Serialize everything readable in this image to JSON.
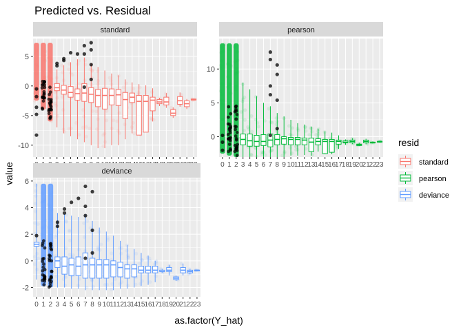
{
  "chart_data": {
    "type": "boxplot",
    "title": "Predicted vs. Residual",
    "xlabel": "as.factor(Y_hat)",
    "ylabel": "value",
    "categories": [
      "0",
      "1",
      "2",
      "3",
      "4",
      "5",
      "6",
      "7",
      "8",
      "9",
      "10",
      "11",
      "12",
      "13",
      "14",
      "15",
      "16",
      "17",
      "18",
      "19",
      "20",
      "21",
      "22",
      "23"
    ],
    "legend": {
      "title": "resid",
      "position": "right",
      "entries": [
        {
          "name": "standard",
          "color": "#F8766D"
        },
        {
          "name": "pearson",
          "color": "#00BA38"
        },
        {
          "name": "deviance",
          "color": "#619CFF"
        }
      ]
    },
    "colors": {
      "standard": "#F8766D",
      "pearson": "#00BA38",
      "deviance": "#619CFF",
      "panel_bg": "#EBEBEB",
      "strip_bg": "#D9D9D9",
      "grid": "#FFFFFF"
    },
    "panels": [
      {
        "name": "standard",
        "color": "#F8766D",
        "ylim": [
          -12,
          8
        ],
        "yticks": [
          -10,
          -5,
          0,
          5
        ],
        "ytick_labels": [
          "-10",
          "-5",
          "0",
          "5"
        ],
        "boxes": [
          {
            "q1": null,
            "median": null,
            "q3": null,
            "lo": -2.5,
            "hi": 7.3
          },
          {
            "q1": null,
            "median": null,
            "q3": null,
            "lo": -4,
            "hi": 7.3
          },
          {
            "q1": null,
            "median": null,
            "q3": null,
            "lo": -6,
            "hi": 7.3
          },
          {
            "q1": -0.8,
            "median": -0.3,
            "q3": 0.4,
            "lo": -7,
            "hi": 2.8
          },
          {
            "q1": -1.4,
            "median": -0.7,
            "q3": 0.1,
            "lo": -8,
            "hi": 3.5
          },
          {
            "q1": -1.9,
            "median": -1.1,
            "q3": -0.1,
            "lo": -8.5,
            "hi": 4
          },
          {
            "q1": -2.4,
            "median": -1.3,
            "q3": -0.5,
            "lo": -9,
            "hi": 4.5
          },
          {
            "q1": -2.6,
            "median": -1.2,
            "q3": 0.4,
            "lo": -9.5,
            "hi": 4.8
          },
          {
            "q1": -2.8,
            "median": -1.4,
            "q3": -0.3,
            "lo": -10,
            "hi": 3.8
          },
          {
            "q1": -3.5,
            "median": -1.6,
            "q3": -0.6,
            "lo": -10.5,
            "hi": 3.2
          },
          {
            "q1": -3.9,
            "median": -1.6,
            "q3": -0.4,
            "lo": -10.5,
            "hi": 2.6
          },
          {
            "q1": -3.2,
            "median": -1.6,
            "q3": -0.5,
            "lo": -10,
            "hi": 2.1
          },
          {
            "q1": -3.3,
            "median": -1.5,
            "q3": -0.6,
            "lo": -10,
            "hi": 1.8
          },
          {
            "q1": -5.5,
            "median": -2.3,
            "q3": -1.1,
            "lo": -9,
            "hi": 1.1
          },
          {
            "q1": -2.8,
            "median": -1.9,
            "q3": -1.2,
            "lo": -8,
            "hi": 0.6
          },
          {
            "q1": -8.3,
            "median": -2.6,
            "q3": -1.6,
            "lo": -8.3,
            "hi": 0.3
          },
          {
            "q1": -7.8,
            "median": -2.6,
            "q3": -1.6,
            "lo": -7.8,
            "hi": 0.1
          },
          {
            "q1": -4.2,
            "median": -2.4,
            "q3": -1.9,
            "lo": -6,
            "hi": -0.4
          },
          {
            "q1": -3,
            "median": -2.7,
            "q3": -2.3,
            "lo": -3.4,
            "hi": -2
          },
          {
            "q1": -3.2,
            "median": -2.7,
            "q3": -1.9,
            "lo": -3.7,
            "hi": -1.2
          },
          {
            "q1": -5,
            "median": -4.6,
            "q3": -4,
            "lo": -5.4,
            "hi": -3.6
          },
          {
            "q1": -3.1,
            "median": -2.5,
            "q3": -1.8,
            "lo": -3.5,
            "hi": -1.1
          },
          {
            "q1": -3.5,
            "median": -3,
            "q3": -2.5,
            "lo": -3.9,
            "hi": -2.2
          },
          {
            "q1": -2.4,
            "median": -2.3,
            "q3": -2.2,
            "lo": -2.4,
            "hi": -2.2
          }
        ],
        "outliers_dark": [
          {
            "x": "0",
            "y": -8.3
          },
          {
            "x": "0",
            "y": -4.8
          },
          {
            "x": "0",
            "y": -3.6
          },
          {
            "x": "0",
            "y": -1.8
          },
          {
            "x": "0",
            "y": -0.5
          },
          {
            "x": "3",
            "y": 3.4
          },
          {
            "x": "3",
            "y": 3.8
          },
          {
            "x": "4",
            "y": 4.6
          },
          {
            "x": "4",
            "y": 4.3
          },
          {
            "x": "5",
            "y": 5.6
          },
          {
            "x": "6",
            "y": 5.4
          },
          {
            "x": "7",
            "y": 6.8
          },
          {
            "x": "7",
            "y": 5.4
          },
          {
            "x": "7",
            "y": -0.2
          },
          {
            "x": "8",
            "y": 7.3
          },
          {
            "x": "8",
            "y": 6.1
          },
          {
            "x": "8",
            "y": 3.6
          },
          {
            "x": "8",
            "y": 1.1
          }
        ]
      },
      {
        "name": "pearson",
        "color": "#00BA38",
        "ylim": [
          -3,
          14.5
        ],
        "yticks": [
          0,
          5,
          10
        ],
        "ytick_labels": [
          "0",
          "5",
          "10"
        ],
        "boxes": [
          {
            "q1": null,
            "median": null,
            "q3": null,
            "lo": -2.5,
            "hi": 13.8
          },
          {
            "q1": null,
            "median": null,
            "q3": null,
            "lo": -2.8,
            "hi": 13.8
          },
          {
            "q1": null,
            "median": null,
            "q3": null,
            "lo": -3,
            "hi": 13.8
          },
          {
            "q1": -1.2,
            "median": -0.4,
            "q3": 0.4,
            "lo": -3,
            "hi": 8
          },
          {
            "q1": -1.4,
            "median": -0.6,
            "q3": 0.4,
            "lo": -3,
            "hi": 7
          },
          {
            "q1": -1.4,
            "median": -0.7,
            "q3": 0.2,
            "lo": -3,
            "hi": 6
          },
          {
            "q1": -1.3,
            "median": -0.7,
            "q3": 0.3,
            "lo": -3,
            "hi": 5
          },
          {
            "q1": -1.5,
            "median": -0.5,
            "q3": 0.4,
            "lo": -3,
            "hi": 4.5
          },
          {
            "q1": -1.2,
            "median": -0.4,
            "q3": 0.3,
            "lo": -3,
            "hi": 3.5
          },
          {
            "q1": -1.1,
            "median": -0.3,
            "q3": 0,
            "lo": -3,
            "hi": 3
          },
          {
            "q1": -1.2,
            "median": -0.4,
            "q3": -0.1,
            "lo": -2.8,
            "hi": 2.5
          },
          {
            "q1": -1.2,
            "median": -0.4,
            "q3": -0.1,
            "lo": -2.8,
            "hi": 2
          },
          {
            "q1": -1.2,
            "median": -0.5,
            "q3": -0.2,
            "lo": -2.7,
            "hi": 1.8
          },
          {
            "q1": -2.2,
            "median": -0.8,
            "q3": -0.2,
            "lo": -2.8,
            "hi": 1.5
          },
          {
            "q1": -1.2,
            "median": -0.7,
            "q3": -0.3,
            "lo": -2.2,
            "hi": 1.2
          },
          {
            "q1": -2.5,
            "median": -0.7,
            "q3": -0.4,
            "lo": -2.6,
            "hi": 0.8
          },
          {
            "q1": -2.3,
            "median": -0.7,
            "q3": -0.4,
            "lo": -2.6,
            "hi": 0.6
          },
          {
            "q1": -1.1,
            "median": -0.7,
            "q3": -0.5,
            "lo": -1.8,
            "hi": 0.2
          },
          {
            "q1": -0.9,
            "median": -0.8,
            "q3": -0.6,
            "lo": -1.2,
            "hi": -0.4
          },
          {
            "q1": -0.9,
            "median": -0.7,
            "q3": -0.5,
            "lo": -1.1,
            "hi": -0.2
          },
          {
            "q1": -1.3,
            "median": -1.2,
            "q3": -1.1,
            "lo": -1.4,
            "hi": -0.9
          },
          {
            "q1": -0.9,
            "median": -0.7,
            "q3": -0.5,
            "lo": -1.1,
            "hi": -0.3
          },
          {
            "q1": -0.9,
            "median": -0.9,
            "q3": -0.8,
            "lo": -1,
            "hi": -0.7
          },
          {
            "q1": -0.7,
            "median": -0.7,
            "q3": -0.7,
            "lo": -0.7,
            "hi": -0.7
          }
        ],
        "outliers_dark": [
          {
            "x": "0",
            "y": -2
          },
          {
            "x": "0",
            "y": -0.8
          },
          {
            "x": "0",
            "y": 0.2
          },
          {
            "x": "2",
            "y": 4.5
          },
          {
            "x": "2",
            "y": 3.8
          },
          {
            "x": "2",
            "y": 2.6
          },
          {
            "x": "7",
            "y": 12.5
          },
          {
            "x": "7",
            "y": 11.4
          },
          {
            "x": "7",
            "y": 7.5
          },
          {
            "x": "7",
            "y": 6.2
          },
          {
            "x": "7",
            "y": 0.2
          },
          {
            "x": "8",
            "y": 10.6
          },
          {
            "x": "8",
            "y": 9.2
          },
          {
            "x": "8",
            "y": 5.4
          },
          {
            "x": "8",
            "y": 1.2
          }
        ]
      },
      {
        "name": "deviance",
        "color": "#619CFF",
        "ylim": [
          -2.7,
          6.2
        ],
        "yticks": [
          -2,
          0,
          2,
          4,
          6
        ],
        "ytick_labels": [
          "-2",
          "0",
          "2",
          "4",
          "6"
        ],
        "boxes": [
          {
            "q1": 1.1,
            "median": 1.25,
            "q3": 1.4,
            "lo": -1.4,
            "hi": 5.8
          },
          {
            "q1": null,
            "median": null,
            "q3": null,
            "lo": -1.9,
            "hi": 5.8
          },
          {
            "q1": null,
            "median": null,
            "q3": null,
            "lo": -2,
            "hi": 5.8
          },
          {
            "q1": -0.5,
            "median": 0,
            "q3": 0.3,
            "lo": -2,
            "hi": 3.6
          },
          {
            "q1": -1,
            "median": -0.4,
            "q3": 0.3,
            "lo": -2,
            "hi": 3.5
          },
          {
            "q1": -1.1,
            "median": -0.3,
            "q3": 0.2,
            "lo": -2.1,
            "hi": 3.4
          },
          {
            "q1": -1.1,
            "median": -0.4,
            "q3": 0.3,
            "lo": -2.1,
            "hi": 3.3
          },
          {
            "q1": -1.3,
            "median": -0.3,
            "q3": 0.6,
            "lo": -2.2,
            "hi": 3.5
          },
          {
            "q1": -1.3,
            "median": -0.3,
            "q3": 0.2,
            "lo": -2.2,
            "hi": 3
          },
          {
            "q1": -1.3,
            "median": -0.3,
            "q3": 0.1,
            "lo": -2.2,
            "hi": 2.5
          },
          {
            "q1": -1.3,
            "median": -0.3,
            "q3": 0.1,
            "lo": -2.2,
            "hi": 2.2
          },
          {
            "q1": -1.2,
            "median": -0.3,
            "q3": 0,
            "lo": -2.2,
            "hi": 1.9
          },
          {
            "q1": -1.2,
            "median": -0.5,
            "q3": -0.1,
            "lo": -2.1,
            "hi": 1.5
          },
          {
            "q1": -1.3,
            "median": -0.6,
            "q3": -0.3,
            "lo": -2.1,
            "hi": 1.2
          },
          {
            "q1": -1.2,
            "median": -0.6,
            "q3": -0.3,
            "lo": -2,
            "hi": 0.9
          },
          {
            "q1": -0.9,
            "median": -0.7,
            "q3": -0.4,
            "lo": -1.9,
            "hi": 0.6
          },
          {
            "q1": -0.9,
            "median": -0.7,
            "q3": -0.4,
            "lo": -1.8,
            "hi": 0.4
          },
          {
            "q1": -0.9,
            "median": -0.7,
            "q3": -0.4,
            "lo": -1.6,
            "hi": 0
          },
          {
            "q1": -0.8,
            "median": -0.8,
            "q3": -0.7,
            "lo": -0.9,
            "hi": -0.6
          },
          {
            "q1": -0.8,
            "median": -0.7,
            "q3": -0.5,
            "lo": -1.1,
            "hi": -0.3
          },
          {
            "q1": -1.4,
            "median": -1.3,
            "q3": -1.2,
            "lo": -1.5,
            "hi": -1.1
          },
          {
            "q1": -0.9,
            "median": -0.7,
            "q3": -0.5,
            "lo": -1.1,
            "hi": -0.2
          },
          {
            "q1": -0.9,
            "median": -0.8,
            "q3": -0.7,
            "lo": -1,
            "hi": -0.6
          },
          {
            "q1": -0.7,
            "median": -0.7,
            "q3": -0.7,
            "lo": -0.7,
            "hi": -0.7
          }
        ],
        "outliers_dark": [
          {
            "x": "0",
            "y": 1.9
          },
          {
            "x": "3",
            "y": 2.6
          },
          {
            "x": "3",
            "y": 2.9
          },
          {
            "x": "4",
            "y": 3.6
          },
          {
            "x": "4",
            "y": 3.9
          },
          {
            "x": "5",
            "y": 4.4
          },
          {
            "x": "6",
            "y": 4.7
          },
          {
            "x": "7",
            "y": 5.6
          },
          {
            "x": "7",
            "y": 4.1
          },
          {
            "x": "7",
            "y": 3.4
          },
          {
            "x": "7",
            "y": 0.2
          },
          {
            "x": "8",
            "y": 5.2
          },
          {
            "x": "8",
            "y": 2.3
          },
          {
            "x": "8",
            "y": 0.6
          }
        ]
      }
    ]
  }
}
